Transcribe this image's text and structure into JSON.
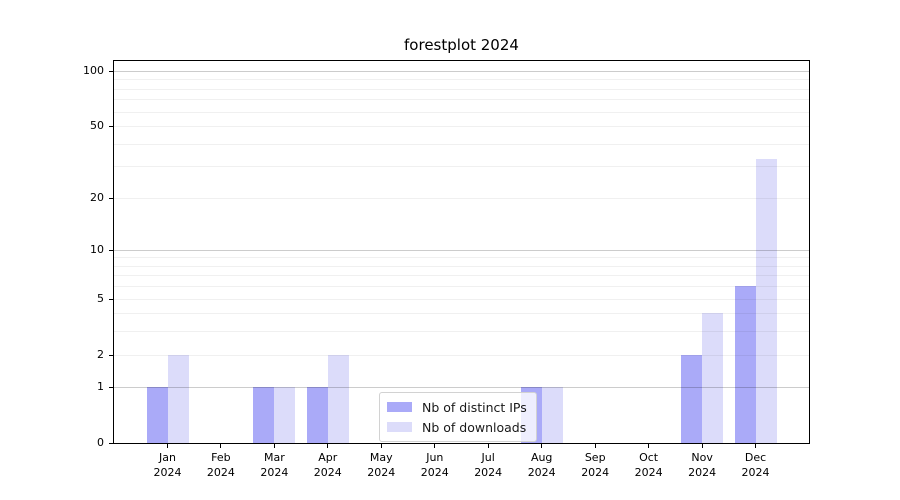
{
  "chart_data": {
    "type": "bar",
    "title": "forestplot 2024",
    "categories": [
      {
        "month": "Jan",
        "year": "2024"
      },
      {
        "month": "Feb",
        "year": "2024"
      },
      {
        "month": "Mar",
        "year": "2024"
      },
      {
        "month": "Apr",
        "year": "2024"
      },
      {
        "month": "May",
        "year": "2024"
      },
      {
        "month": "Jun",
        "year": "2024"
      },
      {
        "month": "Jul",
        "year": "2024"
      },
      {
        "month": "Aug",
        "year": "2024"
      },
      {
        "month": "Sep",
        "year": "2024"
      },
      {
        "month": "Oct",
        "year": "2024"
      },
      {
        "month": "Nov",
        "year": "2024"
      },
      {
        "month": "Dec",
        "year": "2024"
      }
    ],
    "series": [
      {
        "name": "Nb of distinct IPs",
        "color": "#aaaaf8",
        "values": [
          1,
          0,
          1,
          1,
          0,
          0,
          0,
          1,
          0,
          0,
          2,
          6
        ]
      },
      {
        "name": "Nb of downloads",
        "color": "#dcdcfa",
        "values": [
          2,
          0,
          1,
          2,
          0,
          0,
          0,
          1,
          0,
          0,
          4,
          33
        ]
      }
    ],
    "y_scale": "log1p",
    "ylim": [
      0,
      113.4
    ],
    "xlim": [
      -1,
      12
    ],
    "y_ticks": [
      0,
      1,
      2,
      5,
      10,
      20,
      50,
      100
    ],
    "gridlines": {
      "major": [
        1,
        10,
        100
      ],
      "minor": [
        2,
        3,
        4,
        5,
        6,
        7,
        8,
        9,
        20,
        30,
        40,
        50,
        60,
        70,
        80,
        90
      ]
    },
    "grid_on": true,
    "legend_position": "lower center",
    "colors": {
      "major_grid": "rgba(0,0,0,0.20)",
      "minor_grid": "rgba(0,0,0,0.06)",
      "spine": "#000000",
      "background": "#ffffff"
    }
  }
}
